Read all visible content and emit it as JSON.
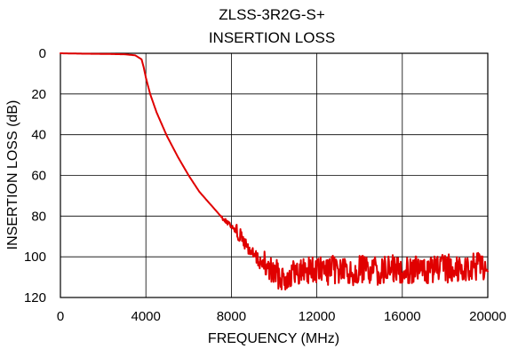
{
  "chart_data": {
    "type": "line",
    "title_line1": "ZLSS-3R2G-S+",
    "title_line2": "INSERTION LOSS",
    "xlabel": "FREQUENCY (MHz)",
    "ylabel": "INSERTION LOSS (dB)",
    "xlim": [
      0,
      20000
    ],
    "ylim": [
      0,
      120
    ],
    "y_inverted": true,
    "grid": true,
    "x_ticks": [
      0,
      4000,
      8000,
      12000,
      16000,
      20000
    ],
    "y_ticks": [
      0,
      20,
      40,
      60,
      80,
      100,
      120
    ],
    "x_tick_labels": [
      "0",
      "4000",
      "8000",
      "12000",
      "16000",
      "20000"
    ],
    "y_tick_labels": [
      "0",
      "20",
      "40",
      "60",
      "80",
      "100",
      "120"
    ],
    "line_color": "#e00000",
    "series": [
      {
        "x": [
          0,
          1000,
          2000,
          3000,
          3500,
          3800,
          3900,
          4000,
          4200,
          4500,
          5000,
          5500,
          6000,
          6500,
          7000,
          7500,
          8000,
          8500,
          9000,
          9500,
          10000,
          10500,
          11000,
          11500,
          12000,
          12500,
          13000,
          13500,
          14000,
          14500,
          15000,
          15500,
          16000,
          16500,
          17000,
          17500,
          18000,
          18500,
          19000,
          19500,
          20000
        ],
        "values": [
          0,
          0.2,
          0.3,
          0.5,
          1,
          3,
          7,
          12,
          20,
          29,
          41,
          51,
          60,
          68,
          74,
          80,
          85,
          91,
          99,
          104,
          108,
          110,
          108,
          106,
          107,
          107,
          106,
          108,
          106,
          107,
          107,
          106,
          106,
          106,
          107,
          106,
          106,
          105,
          106,
          105,
          104
        ]
      }
    ]
  }
}
